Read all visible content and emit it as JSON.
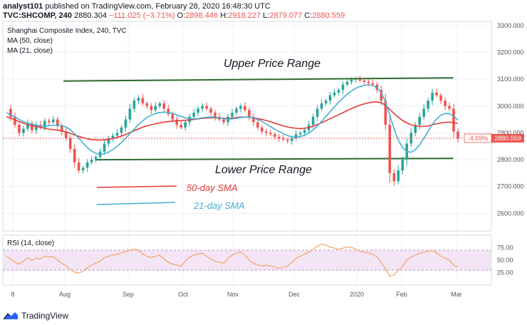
{
  "header": {
    "publisher": "analyst101",
    "published_text": "published on TradingView.com, February 28, 2020 16:48:30 UTC",
    "symbol": "TVC:SHCOMP, 240",
    "change": "−111.025 (−3.71%)",
    "ohlc": [
      {
        "label": "O:",
        "value": "2898.446"
      },
      {
        "label": "H:",
        "value": "2918.227"
      },
      {
        "label": "L:",
        "value": "2879.077"
      },
      {
        "label": "C:",
        "value": "2880.559"
      }
    ],
    "last_price": "2880.304"
  },
  "legend": {
    "title": "Shanghai Composite Index, 240, TVC",
    "ma50": "MA (50, close)",
    "ma21": "MA (21, close)"
  },
  "annotations": {
    "upper": "Upper Price Range",
    "lower": "Lower Price Range",
    "sma50": "50-day SMA",
    "sma21": "21-day SMA"
  },
  "price_tag": {
    "change": "-4.69%",
    "value": "2880.559"
  },
  "rsi": {
    "label": "RSI (14, close)",
    "ticks": [
      "75.00",
      "50.00",
      "25.00"
    ]
  },
  "footer": {
    "brand": "TradingView"
  },
  "colors": {
    "candle_up": "#26a69a",
    "candle_down": "#ef5350",
    "ma50": "#e53935",
    "ma21": "#42b0d5",
    "channel": "#2e6b2e",
    "rsi_line": "#f4a460",
    "rsi_band": "#f3e5f5"
  },
  "chart_data": {
    "type": "candlestick",
    "y_axis_ticks": [
      2600,
      2700,
      2800,
      2900,
      3000,
      3100,
      3200,
      3300
    ],
    "y_axis_labels": [
      "2600.000",
      "2700.000",
      "2800.000",
      "2900.000",
      "3000.000",
      "3100.000",
      "3200.000",
      "3300.000"
    ],
    "ylim": [
      2540,
      3310
    ],
    "x_axis_labels": [
      "8",
      "Aug",
      "Sep",
      "Oct",
      "Nov",
      "Dec",
      "2020",
      "Feb",
      "Mar"
    ],
    "close": [
      2990,
      2960,
      2930,
      2900,
      2915,
      2935,
      2910,
      2930,
      2920,
      2945,
      2940,
      2950,
      2925,
      2905,
      2880,
      2840,
      2790,
      2760,
      2770,
      2790,
      2800,
      2810,
      2830,
      2860,
      2880,
      2890,
      2900,
      2920,
      2950,
      2990,
      3020,
      3030,
      3010,
      3000,
      2985,
      3000,
      3010,
      2990,
      2970,
      2950,
      2930,
      2920,
      2940,
      2960,
      2975,
      2990,
      3000,
      2990,
      2975,
      2960,
      2950,
      2940,
      2960,
      2975,
      2990,
      3000,
      2985,
      2960,
      2940,
      2920,
      2905,
      2900,
      2895,
      2885,
      2880,
      2875,
      2870,
      2880,
      2895,
      2900,
      2910,
      2930,
      2960,
      2990,
      3010,
      3020,
      3040,
      3050,
      3060,
      3080,
      3090,
      3100,
      3100,
      3095,
      3090,
      3085,
      3080,
      3060,
      3020,
      2930,
      2750,
      2720,
      2760,
      2800,
      2860,
      2900,
      2930,
      2960,
      2990,
      3020,
      3050,
      3040,
      3020,
      3000,
      2990,
      2905,
      2880
    ],
    "ma50": [
      2960,
      2955,
      2948,
      2942,
      2936,
      2930,
      2927,
      2924,
      2920,
      2917,
      2914,
      2912,
      2910,
      2907,
      2903,
      2898,
      2892,
      2887,
      2882,
      2878,
      2875,
      2874,
      2873,
      2874,
      2876,
      2879,
      2883,
      2888,
      2894,
      2901,
      2908,
      2915,
      2921,
      2926,
      2930,
      2934,
      2937,
      2940,
      2942,
      2944,
      2945,
      2946,
      2947,
      2948,
      2950,
      2952,
      2954,
      2955,
      2956,
      2956,
      2955,
      2954,
      2954,
      2955,
      2957,
      2959,
      2959,
      2958,
      2956,
      2953,
      2950,
      2946,
      2941,
      2936,
      2931,
      2926,
      2922,
      2919,
      2917,
      2916,
      2917,
      2920,
      2925,
      2931,
      2938,
      2945,
      2953,
      2960,
      2968,
      2975,
      2983,
      2990,
      2997,
      3003,
      3008,
      3012,
      3015,
      3015,
      3012,
      3003,
      2988,
      2972,
      2958,
      2946,
      2937,
      2930,
      2926,
      2924,
      2924,
      2926,
      2930,
      2934,
      2937,
      2939,
      2940,
      2938,
      2935
    ],
    "ma21": [
      2975,
      2968,
      2960,
      2950,
      2942,
      2937,
      2932,
      2929,
      2926,
      2925,
      2926,
      2928,
      2929,
      2927,
      2922,
      2912,
      2897,
      2880,
      2862,
      2845,
      2832,
      2824,
      2820,
      2822,
      2828,
      2838,
      2850,
      2864,
      2880,
      2897,
      2914,
      2930,
      2945,
      2957,
      2966,
      2972,
      2976,
      2977,
      2976,
      2972,
      2967,
      2961,
      2956,
      2953,
      2952,
      2953,
      2956,
      2958,
      2959,
      2958,
      2956,
      2953,
      2952,
      2952,
      2954,
      2957,
      2959,
      2959,
      2956,
      2950,
      2942,
      2933,
      2923,
      2914,
      2905,
      2897,
      2890,
      2885,
      2884,
      2886,
      2891,
      2899,
      2911,
      2926,
      2943,
      2961,
      2979,
      2997,
      3014,
      3030,
      3044,
      3056,
      3066,
      3073,
      3077,
      3079,
      3077,
      3068,
      3050,
      3015,
      2965,
      2915,
      2873,
      2845,
      2830,
      2828,
      2837,
      2856,
      2880,
      2906,
      2932,
      2952,
      2966,
      2972,
      2972,
      2962,
      2948
    ],
    "upper_range": {
      "x_from": 0.13,
      "y_from": 3093,
      "x_to": 0.985,
      "y_to": 3105
    },
    "lower_range": {
      "x_from": 0.2,
      "y_from": 2800,
      "x_to": 0.985,
      "y_to": 2805
    },
    "rsi": [
      58,
      52,
      46,
      42,
      48,
      55,
      50,
      54,
      52,
      58,
      56,
      57,
      50,
      44,
      38,
      32,
      26,
      24,
      28,
      35,
      40,
      44,
      48,
      55,
      58,
      60,
      62,
      64,
      67,
      70,
      72,
      70,
      62,
      58,
      55,
      58,
      60,
      52,
      46,
      42,
      40,
      38,
      48,
      56,
      60,
      62,
      64,
      58,
      52,
      48,
      46,
      44,
      54,
      60,
      64,
      66,
      60,
      50,
      44,
      40,
      38,
      40,
      38,
      36,
      34,
      36,
      38,
      46,
      54,
      58,
      62,
      66,
      72,
      78,
      82,
      80,
      76,
      74,
      72,
      74,
      76,
      76,
      72,
      68,
      66,
      64,
      62,
      56,
      46,
      32,
      18,
      20,
      30,
      38,
      50,
      56,
      60,
      64,
      66,
      68,
      70,
      64,
      58,
      54,
      50,
      40,
      36
    ],
    "rsi_levels": [
      30,
      70
    ]
  }
}
